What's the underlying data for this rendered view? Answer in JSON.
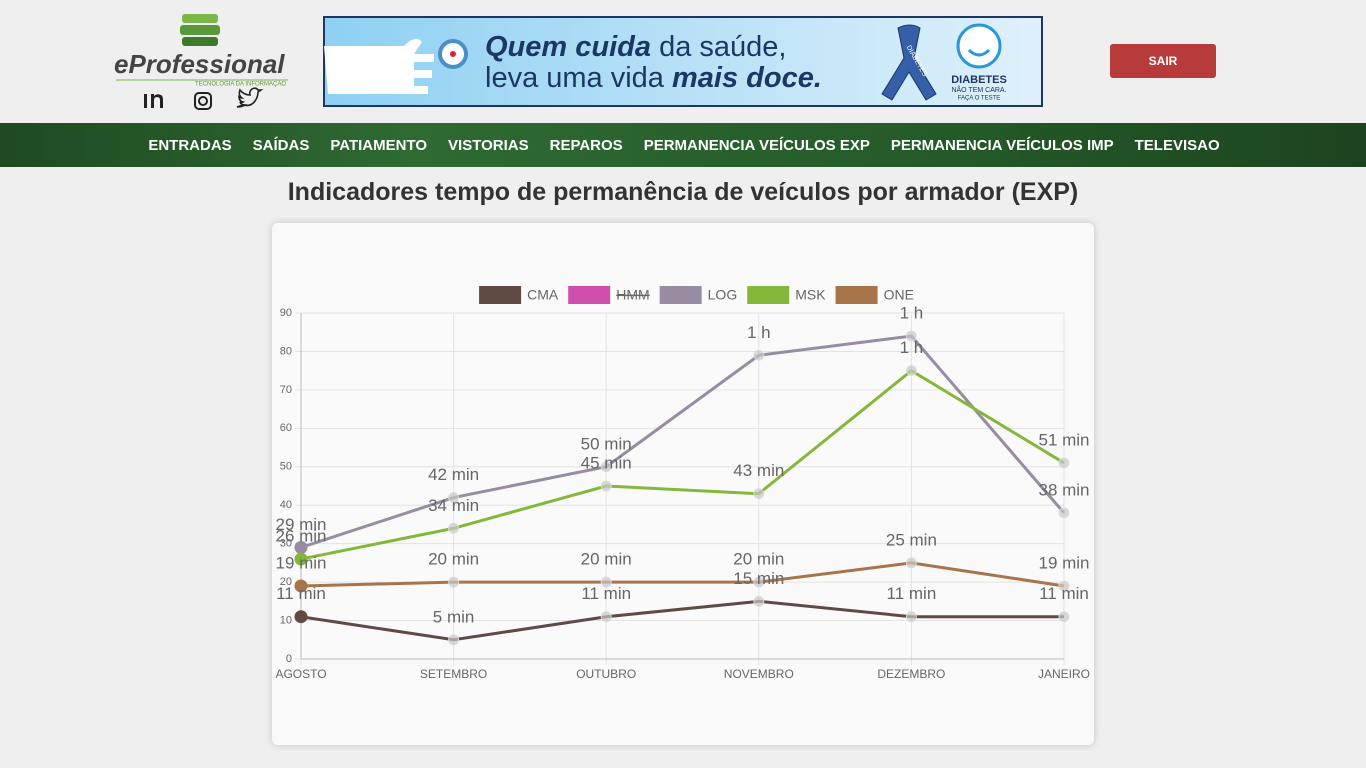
{
  "header": {
    "logo": "eProfessional",
    "logo_tagline": "TECNOLOGIA DA INFORMAÇÃO",
    "banner": {
      "part1": "Quem cuida",
      "part2": "da saúde,",
      "part3": "leva uma vida",
      "part4": "mais doce.",
      "ribbon": "DIABETES",
      "brand": "DIABETES",
      "brand_sub1": "NÃO TEM CARA.",
      "brand_sub2": "FAÇA O TESTE"
    },
    "logout": "SAIR"
  },
  "nav": [
    "ENTRADAS",
    "SAÍDAS",
    "PATIAMENTO",
    "VISTORIAS",
    "REPAROS",
    "PERMANENCIA VEÍCULOS EXP",
    "PERMANENCIA VEÍCULOS IMP",
    "TELEVISAO"
  ],
  "chart_data": {
    "type": "line",
    "title": "Indicadores tempo de permanência de veículos por armador (EXP)",
    "categories": [
      "AGOSTO",
      "SETEMBRO",
      "OUTUBRO",
      "NOVEMBRO",
      "DEZEMBRO",
      "JANEIRO"
    ],
    "ylim": [
      0,
      90
    ],
    "yticks": [
      0,
      10,
      20,
      30,
      40,
      50,
      60,
      70,
      80,
      90
    ],
    "grid": true,
    "legend": "top",
    "series": [
      {
        "name": "CMA",
        "color": "#5f4b43",
        "values": [
          11,
          5,
          11,
          15,
          11,
          11
        ],
        "value_labels": [
          "11 min",
          "5 min",
          "11 min",
          "15 min",
          "11 min",
          "11 min"
        ]
      },
      {
        "name": "HMM",
        "color": "#d04fae",
        "hidden": true,
        "values": [
          null,
          null,
          null,
          null,
          null,
          null
        ]
      },
      {
        "name": "LOG",
        "color": "#978ca2",
        "values": [
          29,
          42,
          50,
          79,
          84,
          38
        ],
        "value_labels": [
          "29 min",
          "42 min",
          "50 min",
          "1 h",
          "1 h",
          "38 min"
        ]
      },
      {
        "name": "MSK",
        "color": "#84b83a",
        "values": [
          26,
          34,
          45,
          43,
          75,
          51
        ],
        "value_labels": [
          "26 min",
          "34 min",
          "45 min",
          "43 min",
          "1 h",
          "51 min"
        ]
      },
      {
        "name": "ONE",
        "color": "#a8754b",
        "values": [
          19,
          20,
          20,
          20,
          25,
          19
        ],
        "value_labels": [
          "19 min",
          "20 min",
          "20 min",
          "20 min",
          "25 min",
          "19 min"
        ]
      }
    ]
  }
}
